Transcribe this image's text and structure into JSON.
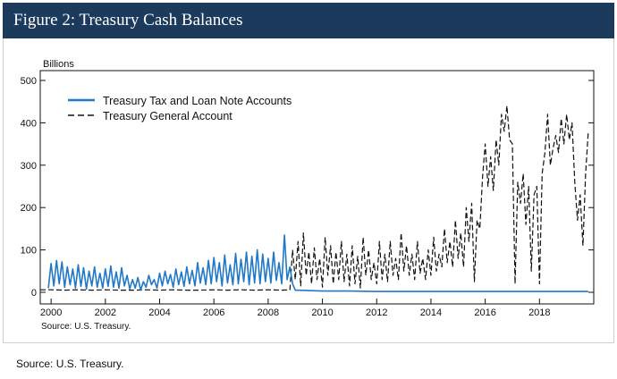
{
  "header": {
    "title": "Figure 2: Treasury Cash Balances"
  },
  "footer": {
    "source": "Source: U.S. Treasury."
  },
  "chart_data": {
    "type": "line",
    "ylabel": "Billions",
    "ylim": [
      0,
      500
    ],
    "xlim": [
      1999.6,
      2020.0
    ],
    "yticks": [
      "0",
      "100",
      "200",
      "300",
      "400",
      "500"
    ],
    "xticks": [
      "2000",
      "2002",
      "2004",
      "2006",
      "2008",
      "2010",
      "2012",
      "2014",
      "2016",
      "2018"
    ],
    "grid": false,
    "legend_placement": "top-left",
    "note": "Source: U.S. Treasury.",
    "series": [
      {
        "name": "Treasury Tax and Loan Note Accounts",
        "color": "#1f78c8",
        "style": "solid",
        "x": [
          1999.9,
          2000.0,
          2000.1,
          2000.2,
          2000.3,
          2000.4,
          2000.5,
          2000.6,
          2000.7,
          2000.8,
          2000.9,
          2001.0,
          2001.1,
          2001.2,
          2001.3,
          2001.4,
          2001.5,
          2001.6,
          2001.7,
          2001.8,
          2001.9,
          2002.0,
          2002.1,
          2002.2,
          2002.3,
          2002.4,
          2002.5,
          2002.6,
          2002.7,
          2002.8,
          2002.9,
          2003.0,
          2003.1,
          2003.2,
          2003.3,
          2003.4,
          2003.5,
          2003.6,
          2003.7,
          2003.8,
          2003.9,
          2004.0,
          2004.1,
          2004.2,
          2004.3,
          2004.4,
          2004.5,
          2004.6,
          2004.7,
          2004.8,
          2004.9,
          2005.0,
          2005.1,
          2005.2,
          2005.3,
          2005.4,
          2005.5,
          2005.6,
          2005.7,
          2005.8,
          2005.9,
          2006.0,
          2006.1,
          2006.2,
          2006.3,
          2006.4,
          2006.5,
          2006.6,
          2006.7,
          2006.8,
          2006.9,
          2007.0,
          2007.1,
          2007.2,
          2007.3,
          2007.4,
          2007.5,
          2007.6,
          2007.7,
          2007.8,
          2007.9,
          2008.0,
          2008.1,
          2008.2,
          2008.3,
          2008.4,
          2008.5,
          2008.6,
          2008.7,
          2008.8,
          2008.9,
          2009.0,
          2010.0,
          2011.0,
          2011.9,
          2012.0,
          2013.0,
          2014.0,
          2015.0,
          2016.0,
          2017.0,
          2018.0,
          2019.0,
          2019.8
        ],
        "values": [
          10,
          68,
          15,
          75,
          20,
          72,
          12,
          60,
          18,
          55,
          10,
          65,
          14,
          58,
          8,
          50,
          15,
          60,
          12,
          45,
          10,
          55,
          14,
          62,
          12,
          48,
          10,
          58,
          15,
          40,
          8,
          30,
          10,
          35,
          5,
          25,
          12,
          40,
          18,
          30,
          10,
          45,
          15,
          50,
          20,
          42,
          12,
          55,
          18,
          48,
          14,
          60,
          20,
          52,
          15,
          70,
          22,
          58,
          18,
          75,
          20,
          82,
          25,
          70,
          15,
          88,
          22,
          65,
          18,
          92,
          20,
          78,
          25,
          95,
          18,
          85,
          22,
          100,
          20,
          90,
          25,
          80,
          22,
          95,
          28,
          70,
          20,
          135,
          30,
          60,
          20,
          5,
          3,
          3,
          2,
          2,
          2,
          2,
          2,
          2,
          2,
          2,
          2,
          2
        ]
      },
      {
        "name": "Treasury General Account",
        "color": "#111111",
        "style": "dashed",
        "x": [
          1999.6,
          2000.0,
          2000.5,
          2001.0,
          2001.5,
          2002.0,
          2002.5,
          2003.0,
          2003.5,
          2004.0,
          2004.5,
          2005.0,
          2005.5,
          2006.0,
          2006.5,
          2007.0,
          2007.5,
          2008.0,
          2008.5,
          2008.8,
          2008.9,
          2009.0,
          2009.1,
          2009.2,
          2009.3,
          2009.4,
          2009.5,
          2009.6,
          2009.7,
          2009.8,
          2009.9,
          2010.0,
          2010.1,
          2010.2,
          2010.3,
          2010.4,
          2010.5,
          2010.6,
          2010.7,
          2010.8,
          2010.9,
          2011.0,
          2011.1,
          2011.2,
          2011.3,
          2011.4,
          2011.5,
          2011.6,
          2011.7,
          2011.8,
          2011.9,
          2012.0,
          2012.1,
          2012.2,
          2012.3,
          2012.4,
          2012.5,
          2012.6,
          2012.7,
          2012.8,
          2012.9,
          2013.0,
          2013.1,
          2013.2,
          2013.3,
          2013.4,
          2013.5,
          2013.6,
          2013.7,
          2013.8,
          2013.9,
          2014.0,
          2014.1,
          2014.2,
          2014.3,
          2014.4,
          2014.5,
          2014.6,
          2014.7,
          2014.8,
          2014.9,
          2015.0,
          2015.1,
          2015.2,
          2015.3,
          2015.4,
          2015.5,
          2015.6,
          2015.7,
          2015.8,
          2015.9,
          2016.0,
          2016.1,
          2016.2,
          2016.3,
          2016.4,
          2016.5,
          2016.6,
          2016.7,
          2016.8,
          2016.9,
          2017.0,
          2017.1,
          2017.2,
          2017.3,
          2017.4,
          2017.5,
          2017.6,
          2017.7,
          2017.8,
          2017.9,
          2018.0,
          2018.1,
          2018.2,
          2018.3,
          2018.4,
          2018.5,
          2018.6,
          2018.7,
          2018.8,
          2018.9,
          2019.0,
          2019.1,
          2019.2,
          2019.3,
          2019.4,
          2019.5,
          2019.6,
          2019.7,
          2019.8
        ],
        "values": [
          6,
          6,
          5,
          6,
          5,
          6,
          5,
          5,
          6,
          5,
          6,
          5,
          5,
          6,
          5,
          6,
          5,
          6,
          5,
          6,
          100,
          30,
          120,
          15,
          140,
          40,
          95,
          20,
          105,
          30,
          80,
          12,
          130,
          40,
          110,
          20,
          95,
          30,
          120,
          25,
          90,
          15,
          110,
          20,
          85,
          10,
          130,
          40,
          100,
          30,
          70,
          20,
          120,
          30,
          90,
          25,
          120,
          40,
          80,
          30,
          140,
          50,
          110,
          40,
          90,
          30,
          120,
          45,
          80,
          30,
          100,
          40,
          130,
          50,
          90,
          60,
          150,
          70,
          120,
          60,
          170,
          80,
          140,
          60,
          200,
          120,
          210,
          25,
          170,
          150,
          270,
          350,
          250,
          320,
          240,
          360,
          300,
          420,
          380,
          440,
          360,
          350,
          20,
          260,
          210,
          280,
          160,
          250,
          50,
          230,
          250,
          20,
          280,
          330,
          420,
          300,
          340,
          370,
          330,
          410,
          350,
          420,
          360,
          400,
          260,
          170,
          230,
          110,
          280,
          380
        ]
      }
    ]
  }
}
